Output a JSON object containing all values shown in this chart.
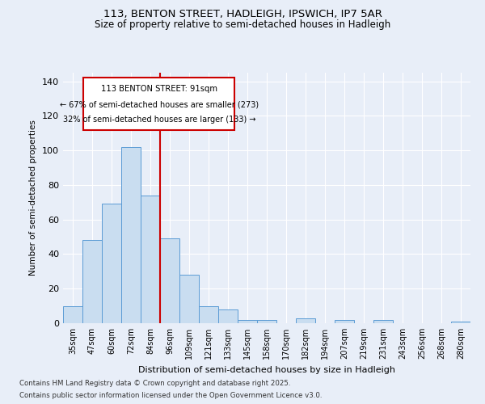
{
  "title_line1": "113, BENTON STREET, HADLEIGH, IPSWICH, IP7 5AR",
  "title_line2": "Size of property relative to semi-detached houses in Hadleigh",
  "xlabel": "Distribution of semi-detached houses by size in Hadleigh",
  "ylabel": "Number of semi-detached properties",
  "categories": [
    "35sqm",
    "47sqm",
    "60sqm",
    "72sqm",
    "84sqm",
    "96sqm",
    "109sqm",
    "121sqm",
    "133sqm",
    "145sqm",
    "158sqm",
    "170sqm",
    "182sqm",
    "194sqm",
    "207sqm",
    "219sqm",
    "231sqm",
    "243sqm",
    "256sqm",
    "268sqm",
    "280sqm"
  ],
  "values": [
    10,
    48,
    69,
    102,
    74,
    49,
    28,
    10,
    8,
    2,
    2,
    0,
    3,
    0,
    2,
    0,
    2,
    0,
    0,
    0,
    1
  ],
  "bar_color": "#c9ddf0",
  "bar_edge_color": "#5b9bd5",
  "ref_line_x": 4.5,
  "ref_label": "113 BENTON STREET: 91sqm",
  "pct_smaller": "67% of semi-detached houses are smaller (273)",
  "pct_larger": "32% of semi-detached houses are larger (133)",
  "ylim": [
    0,
    145
  ],
  "yticks": [
    0,
    20,
    40,
    60,
    80,
    100,
    120,
    140
  ],
  "footnote1": "Contains HM Land Registry data © Crown copyright and database right 2025.",
  "footnote2": "Contains public sector information licensed under the Open Government Licence v3.0.",
  "bg_color": "#e8eef8",
  "plot_bg_color": "#e8eef8",
  "annotation_box_color": "#ffffff",
  "annotation_box_edge": "#cc0000",
  "ref_line_color": "#cc0000",
  "grid_color": "#ffffff"
}
